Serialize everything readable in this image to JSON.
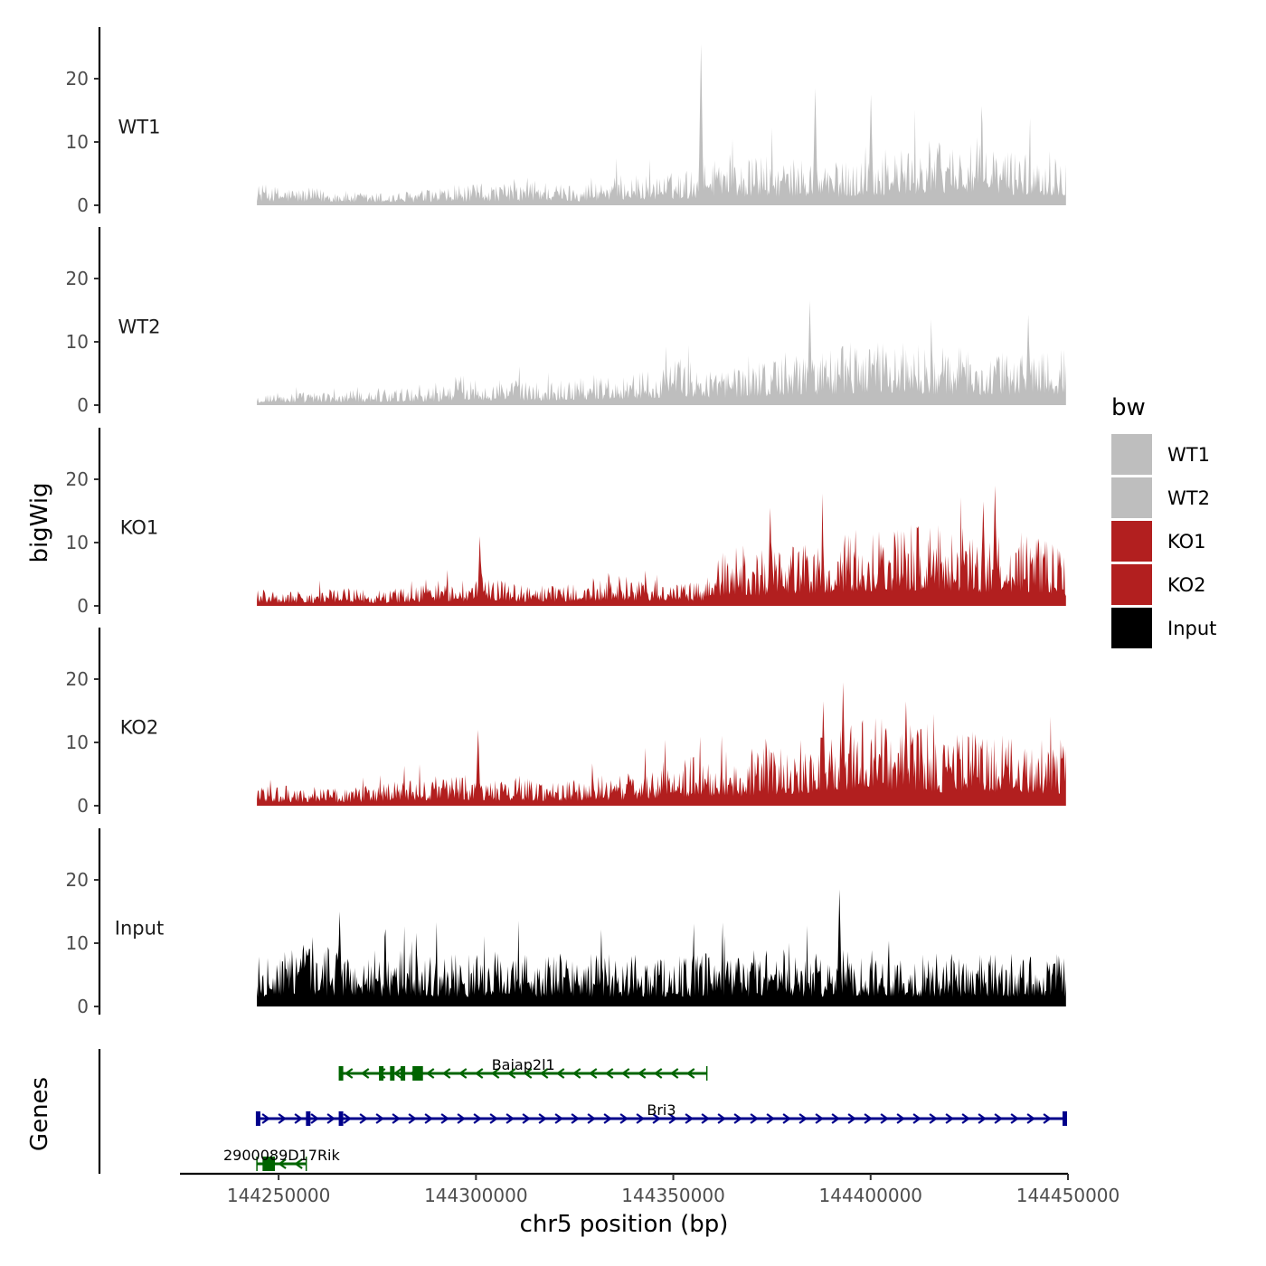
{
  "chart_data": {
    "type": "area",
    "y_axis_title": "bigWig",
    "gene_axis_title": "Genes",
    "x_axis_title": "chr5 position (bp)",
    "x_range": [
      144225000,
      144450000
    ],
    "data_x_range": [
      144244500,
      144449500
    ],
    "x_ticks": [
      144250000,
      144300000,
      144350000,
      144400000,
      144450000
    ],
    "x_tick_labels": [
      "144250000",
      "144300000",
      "144350000",
      "144400000",
      "144450000"
    ],
    "y_range": [
      0,
      27
    ],
    "y_ticks": [
      0,
      10,
      20
    ],
    "y_tick_labels": [
      "0",
      "10",
      "20"
    ],
    "tracks": [
      {
        "name": "WT1",
        "color": "#bebebe",
        "profile": [
          2.5,
          2.2,
          2,
          2,
          1.8,
          1.5,
          1.5,
          1.5,
          1.8,
          1.8,
          2,
          2.5,
          2.5,
          2.5,
          3,
          2.5,
          2.5,
          3,
          3.5,
          3.5,
          3.5,
          4,
          4.5,
          7,
          5,
          6,
          5,
          5.5,
          5,
          5,
          5.5,
          6,
          6.5,
          7,
          7.5,
          7,
          7,
          6.5,
          6.5,
          6,
          6
        ],
        "peaks": [
          {
            "x": 144357000,
            "y": 25.5
          },
          {
            "x": 144386000,
            "y": 18.5
          },
          {
            "x": 144400000,
            "y": 17.5
          }
        ]
      },
      {
        "name": "WT2",
        "color": "#bebebe",
        "profile": [
          1.5,
          1.5,
          1.5,
          1.5,
          1.5,
          1.8,
          2,
          2,
          2,
          2.2,
          3.5,
          3,
          3,
          3,
          2.5,
          3,
          3.5,
          3.5,
          3.5,
          4,
          4.5,
          5.5,
          4.5,
          4,
          5,
          5.5,
          6,
          6,
          6.5,
          7,
          7.5,
          7,
          7.5,
          7,
          6.5,
          6.5,
          6,
          6,
          6.5,
          7,
          6.5
        ],
        "peaks": [
          {
            "x": 144384500,
            "y": 16.5
          },
          {
            "x": 144440000,
            "y": 14.3
          }
        ]
      },
      {
        "name": "KO1",
        "color": "#b21f1f",
        "profile": [
          2,
          1.8,
          1.8,
          1.8,
          2,
          2,
          1.8,
          2,
          2.5,
          3,
          2.5,
          3,
          3.5,
          2.5,
          2.5,
          2.5,
          2.5,
          3,
          3.5,
          3,
          3,
          2.5,
          3,
          6,
          7,
          6,
          8,
          7,
          8,
          8,
          9,
          9.5,
          9,
          10,
          9,
          9,
          8,
          8.5,
          8.5,
          7.5,
          6
        ],
        "peaks": [
          {
            "x": 144301000,
            "y": 11
          },
          {
            "x": 144374500,
            "y": 15.5
          },
          {
            "x": 144428500,
            "y": 16.5
          },
          {
            "x": 144431500,
            "y": 19
          }
        ]
      },
      {
        "name": "KO2",
        "color": "#b21f1f",
        "profile": [
          2.5,
          2.5,
          2,
          2.5,
          2,
          2,
          2.5,
          3,
          3,
          3.5,
          4,
          3,
          3,
          3.5,
          3,
          3,
          3,
          3.5,
          3.5,
          4,
          5,
          5.5,
          6,
          5,
          6,
          7,
          7,
          7.5,
          9,
          9.5,
          10,
          10,
          9.5,
          9.5,
          8,
          9,
          8.5,
          8,
          8,
          7.5,
          7.5
        ],
        "peaks": [
          {
            "x": 144300500,
            "y": 12
          },
          {
            "x": 144388000,
            "y": 16.5
          },
          {
            "x": 144393000,
            "y": 19.5
          },
          {
            "x": 144409000,
            "y": 16.5
          }
        ]
      },
      {
        "name": "Input",
        "color": "#000000",
        "profile": [
          6,
          6.5,
          7,
          7,
          6.5,
          6,
          6,
          6.5,
          6.5,
          6,
          6,
          6,
          6.5,
          6.5,
          6,
          6,
          6,
          6,
          6,
          6,
          6,
          6,
          6,
          6,
          6,
          6,
          6,
          6,
          6,
          6.5,
          6.5,
          6.5,
          6,
          6,
          6,
          6,
          6,
          6,
          6,
          6,
          6
        ],
        "peaks": [
          {
            "x": 144265500,
            "y": 15
          },
          {
            "x": 144392000,
            "y": 18.5
          }
        ]
      }
    ],
    "genes": [
      {
        "name": "Baiap2l1",
        "start": 144265500,
        "end": 144358500,
        "strand": "-",
        "color": "#006400",
        "row": 0,
        "exons": [
          144265800,
          144276000,
          144278800,
          144281500,
          144284500,
          144285500,
          144286000
        ]
      },
      {
        "name": "Bri3",
        "start": 144244500,
        "end": 144449500,
        "strand": "+",
        "color": "#00008b",
        "row": 1,
        "exons": [
          144244800,
          144257500,
          144265800,
          144449200
        ]
      },
      {
        "name": "2900089D17Rik",
        "start": 144244500,
        "end": 144257000,
        "strand": "-",
        "color": "#006400",
        "row": 2,
        "exons": [
          144246500,
          144247500,
          144248500
        ]
      }
    ],
    "legend": {
      "title": "bw",
      "position": "right",
      "entries": [
        {
          "label": "WT1",
          "color": "#bebebe"
        },
        {
          "label": "WT2",
          "color": "#bebebe"
        },
        {
          "label": "KO1",
          "color": "#b21f1f"
        },
        {
          "label": "KO2",
          "color": "#b21f1f"
        },
        {
          "label": "Input",
          "color": "#000000"
        }
      ]
    }
  }
}
